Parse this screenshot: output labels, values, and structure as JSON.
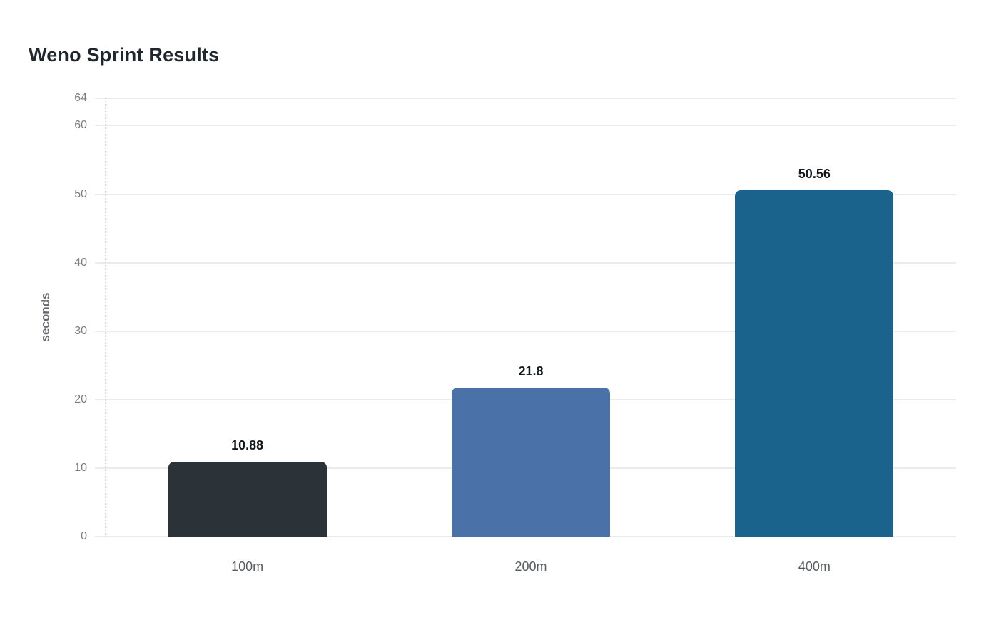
{
  "chart_data": {
    "type": "bar",
    "title": "Weno Sprint Results",
    "xlabel": "",
    "ylabel": "seconds",
    "categories": [
      "100m",
      "200m",
      "400m"
    ],
    "values": [
      10.88,
      21.8,
      50.56
    ],
    "value_labels": [
      "10.88",
      "21.8",
      "50.56"
    ],
    "bar_colors": [
      "#2b3338",
      "#4a72a8",
      "#19638c"
    ],
    "yticks": [
      0,
      10,
      20,
      30,
      40,
      50,
      60,
      64
    ],
    "ytick_labels": [
      "0",
      "10",
      "20",
      "30",
      "40",
      "50",
      "60",
      "64"
    ],
    "ylim": [
      0,
      64
    ],
    "grid": true,
    "legend_position": "none"
  },
  "style": {
    "background": "#ffffff",
    "title_color": "#1f262e",
    "tick_label_color": "#797d81",
    "category_label_color": "#565d63",
    "value_label_color": "#14181c",
    "y_axis_title_color": "#65696d",
    "grid_color": "#ebebeb",
    "axis_line_color": "#d9d9d9"
  }
}
